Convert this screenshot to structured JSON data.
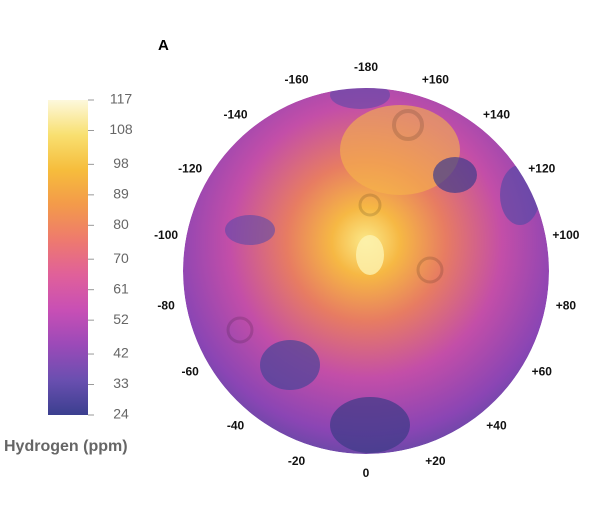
{
  "panel_label": "A",
  "colorbar": {
    "label": "Hydrogen (ppm)",
    "range": [
      24,
      117
    ],
    "ticks": [
      117,
      108,
      98,
      89,
      80,
      70,
      61,
      52,
      42,
      33,
      24
    ],
    "colors": [
      "#3b3f8f",
      "#6a4fb0",
      "#9b4ab8",
      "#c84fb5",
      "#e0609a",
      "#ee7a6e",
      "#f39a4a",
      "#f6bd3c",
      "#f8e070",
      "#fdf8dc"
    ]
  },
  "longitude_labels": [
    "-180",
    "+160",
    "+140",
    "+120",
    "+100",
    "+80",
    "+60",
    "+40",
    "+20",
    "0",
    "-20",
    "-40",
    "-60",
    "-80",
    "-100",
    "-120",
    "-140",
    "-160"
  ]
}
